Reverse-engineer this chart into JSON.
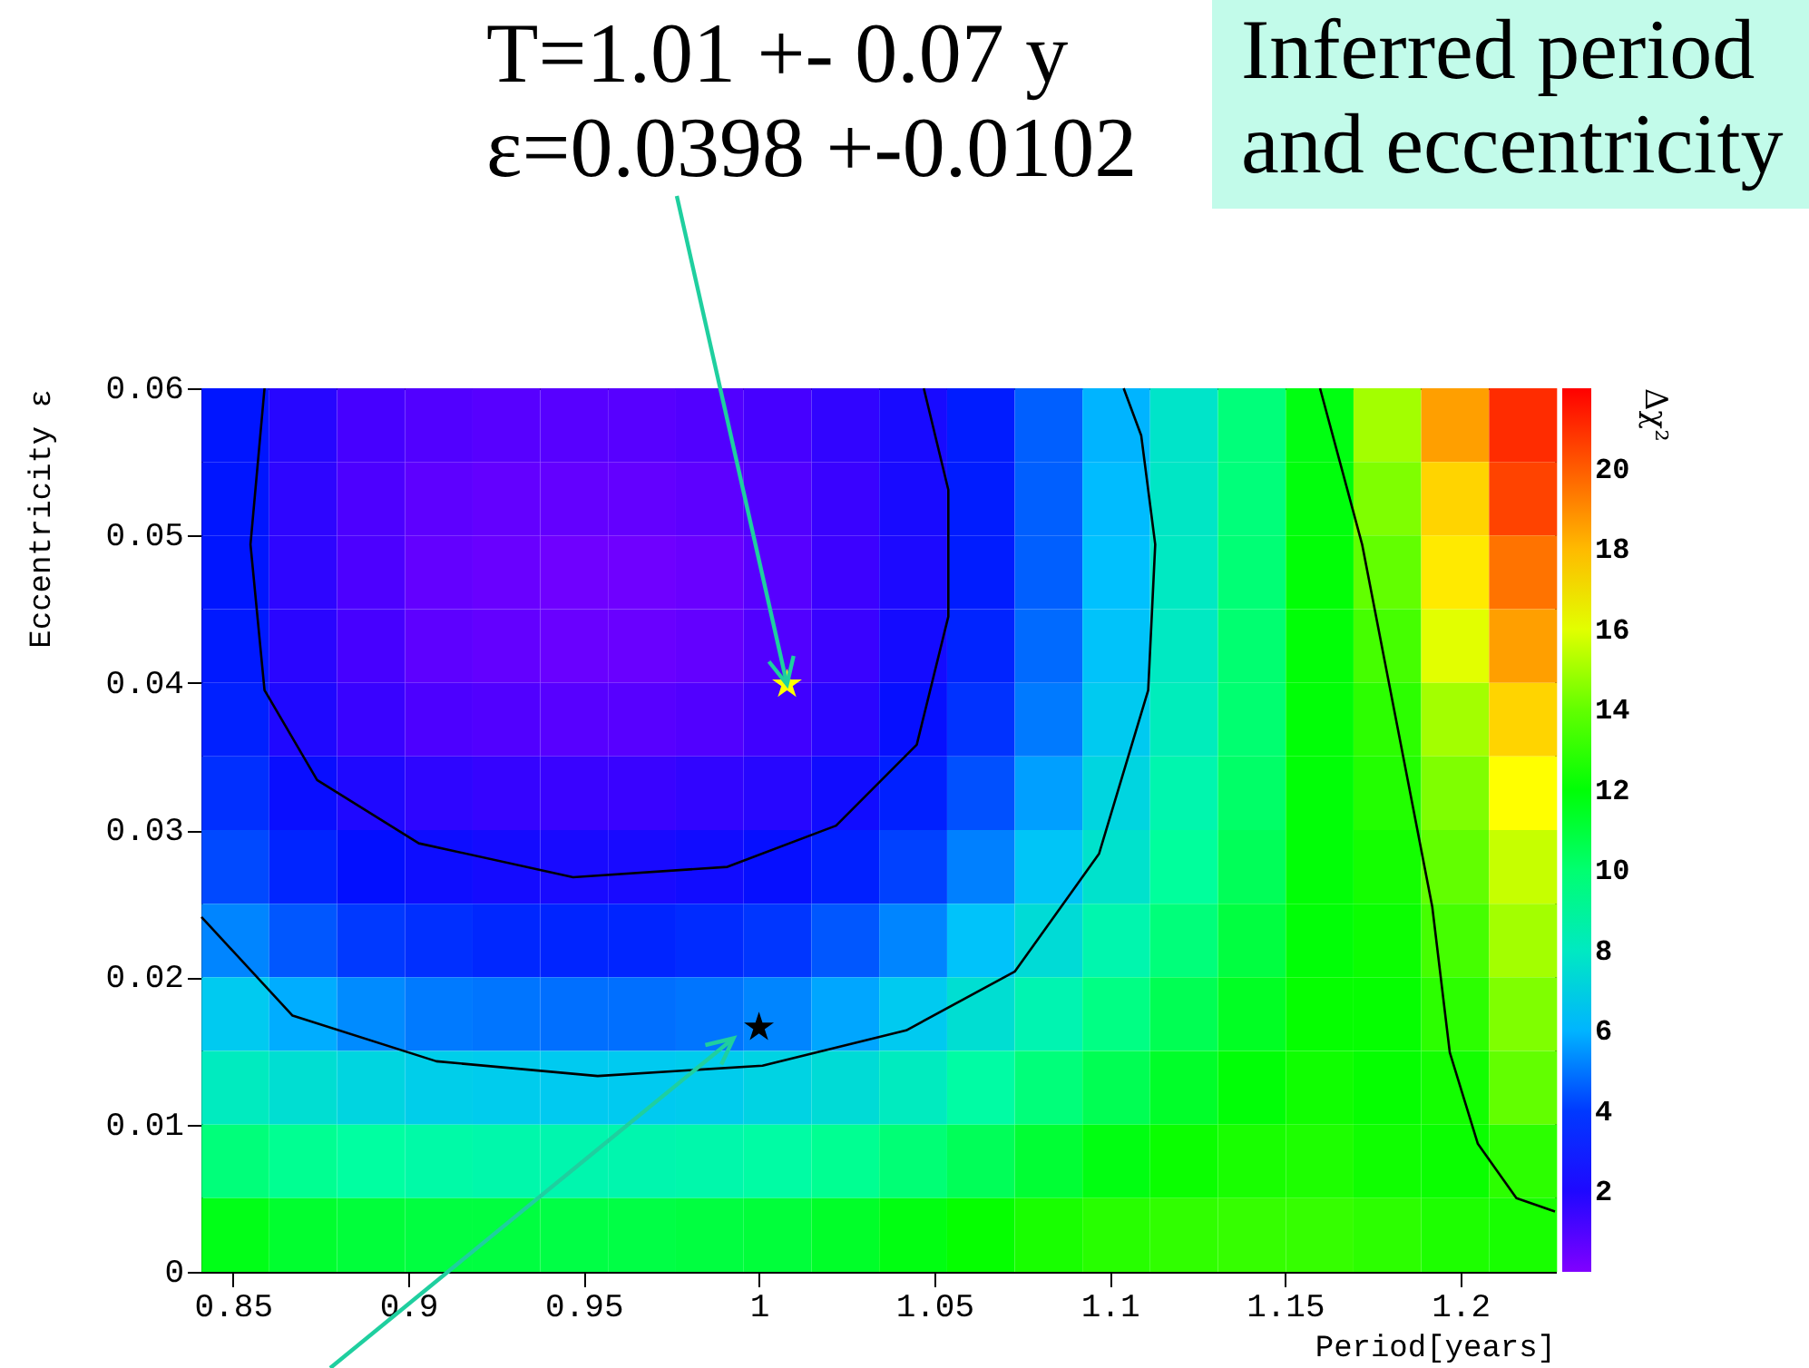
{
  "chart_data": {
    "type": "heatmap",
    "title": "Inferred period and eccentricity",
    "xlabel": "Period[years]",
    "ylabel": "Eccentricity ε",
    "clabel": "Δχ²",
    "annotations": [
      {
        "text": "T=1.01 +- 0.07 y\nε=0.0398 +-0.0102",
        "x": 1.008,
        "y": 0.0399
      }
    ],
    "x": [
      0.8507,
      0.87,
      0.8894,
      0.9087,
      0.928,
      0.9473,
      0.9666,
      0.986,
      1.0053,
      1.0246,
      1.044,
      1.0633,
      1.0826,
      1.1019,
      1.1212,
      1.1406,
      1.1599,
      1.1792,
      1.1985,
      1.2179
    ],
    "y": [
      0.0575,
      0.0525,
      0.0475,
      0.0425,
      0.0375,
      0.0325,
      0.0275,
      0.0225,
      0.0175,
      0.0125,
      0.0075,
      0.0025
    ],
    "cells": [
      [
        3.0,
        1.8,
        1.0,
        0.8,
        0.7,
        0.7,
        0.7,
        0.8,
        1.0,
        1.5,
        2.2,
        3.2,
        4.6,
        6.0,
        7.8,
        9.8,
        11.8,
        15,
        18.5,
        21
      ],
      [
        3.0,
        1.6,
        0.9,
        0.6,
        0.5,
        0.5,
        0.5,
        0.6,
        0.8,
        1.3,
        2.2,
        3.2,
        4.6,
        6.1,
        7.9,
        9.8,
        11.9,
        14.5,
        17.5,
        20.5
      ],
      [
        3.0,
        1.6,
        0.9,
        0.5,
        0.4,
        0.3,
        0.3,
        0.4,
        0.7,
        1.2,
        2.1,
        3.2,
        4.6,
        6.2,
        8.0,
        9.9,
        12.0,
        14,
        17,
        19.5
      ],
      [
        3.1,
        1.7,
        1.0,
        0.6,
        0.5,
        0.4,
        0.4,
        0.5,
        0.8,
        1.3,
        2.3,
        3.4,
        4.8,
        6.3,
        8.0,
        10.0,
        12.0,
        13.5,
        16,
        18.5
      ],
      [
        3.3,
        2.0,
        1.3,
        0.9,
        0.8,
        0.7,
        0.7,
        0.8,
        1.1,
        1.7,
        2.7,
        3.8,
        5.1,
        6.6,
        8.2,
        10,
        12,
        13,
        15,
        17.5
      ],
      [
        3.7,
        2.6,
        2.0,
        1.6,
        1.4,
        1.3,
        1.3,
        1.5,
        1.8,
        2.4,
        3.3,
        4.4,
        5.7,
        7.1,
        8.6,
        10.2,
        12,
        12.8,
        14.5,
        16.5
      ],
      [
        4.3,
        3.4,
        2.8,
        2.5,
        2.3,
        2.2,
        2.2,
        2.4,
        2.7,
        3.3,
        4.2,
        5.2,
        6.4,
        7.7,
        9.1,
        10.5,
        12,
        12.5,
        14,
        15.5
      ],
      [
        5.3,
        4.5,
        4.0,
        3.7,
        3.5,
        3.4,
        3.4,
        3.6,
        3.9,
        4.5,
        5.3,
        6.3,
        7.4,
        8.6,
        9.8,
        11,
        12,
        12.3,
        13.5,
        15
      ],
      [
        6.6,
        5.9,
        5.4,
        5.1,
        5.0,
        4.9,
        4.9,
        5.0,
        5.3,
        5.8,
        6.6,
        7.5,
        8.5,
        9.6,
        10.6,
        11.5,
        12.2,
        12.2,
        13,
        14.5
      ],
      [
        8.1,
        7.5,
        7.1,
        6.8,
        6.7,
        6.6,
        6.6,
        6.7,
        7.0,
        7.4,
        8.1,
        8.9,
        9.8,
        10.6,
        11.4,
        12,
        12.4,
        12.2,
        12.5,
        14
      ],
      [
        9.8,
        9.3,
        9.0,
        8.8,
        8.7,
        8.6,
        8.6,
        8.7,
        8.9,
        9.3,
        9.9,
        10.5,
        11.2,
        11.8,
        12.3,
        12.6,
        12.7,
        12.4,
        12.3,
        13
      ],
      [
        11.7,
        11.3,
        11.1,
        11,
        11,
        10.9,
        10.9,
        11,
        11.1,
        11.4,
        11.8,
        12.2,
        12.6,
        12.9,
        13.1,
        13.2,
        13.2,
        13.0,
        12.7,
        12.6
      ]
    ],
    "clim": [
      0,
      22
    ],
    "cticks": [
      2,
      4,
      6,
      8,
      10,
      12,
      14,
      16,
      18,
      20
    ],
    "xlim": [
      0.841,
      1.227
    ],
    "xticks": [
      0.85,
      0.9,
      0.95,
      1,
      1.05,
      1.1,
      1.15,
      1.2
    ],
    "ylim": [
      0,
      0.06
    ],
    "yticks": [
      0,
      0.01,
      0.02,
      0.03,
      0.04,
      0.05,
      0.06
    ],
    "series": [
      {
        "type": "line",
        "color": "#000000",
        "x": [
          0.859,
          0.855,
          0.859,
          0.874,
          0.903,
          0.947,
          0.991,
          1.022,
          1.045,
          1.054,
          1.054,
          1.047
        ],
        "values": [
          0.06,
          0.0494,
          0.0395,
          0.0334,
          0.0291,
          0.0268,
          0.0275,
          0.0303,
          0.0358,
          0.0445,
          0.0531,
          0.06
        ]
      },
      {
        "type": "line",
        "color": "#000000",
        "x": [
          0.841,
          0.867,
          0.908,
          0.954,
          1.001,
          1.042,
          1.073,
          1.097,
          1.111,
          1.113,
          1.109,
          1.104
        ],
        "values": [
          0.0241,
          0.0174,
          0.0143,
          0.0133,
          0.014,
          0.0164,
          0.0204,
          0.0284,
          0.0395,
          0.0494,
          0.0568,
          0.06
        ]
      },
      {
        "type": "line",
        "color": "#000000",
        "x": [
          1.16,
          1.172,
          1.182,
          1.192,
          1.197,
          1.205,
          1.216,
          1.227
        ],
        "values": [
          0.06,
          0.0494,
          0.0371,
          0.0248,
          0.0149,
          0.0087,
          0.005,
          0.0041
        ]
      },
      {
        "type": "scatter",
        "marker": "star",
        "color": "#ffff00",
        "x": [
          1.008
        ],
        "values": [
          0.0399
        ]
      },
      {
        "type": "scatter",
        "marker": "star",
        "color": "#000000",
        "x": [
          1.0
        ],
        "values": [
          0.0166
        ]
      }
    ]
  }
}
